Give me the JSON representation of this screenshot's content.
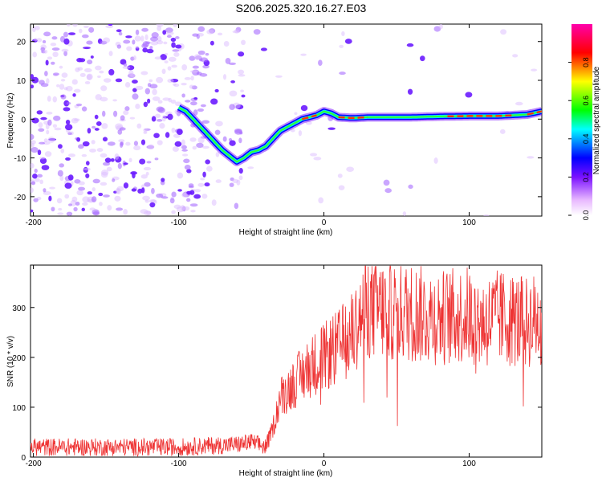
{
  "title": "S206.2025.320.16.27.E03",
  "chart_data": [
    {
      "type": "heatmap",
      "title": "S206.2025.320.16.27.E03",
      "xlabel": "Height of straight line (km)",
      "ylabel": "Frequency (Hz)",
      "xlim": [
        -202,
        150
      ],
      "ylim": [
        -25,
        24.5
      ],
      "xticks": [
        -200,
        -100,
        0,
        100
      ],
      "yticks": [
        -20,
        -10,
        0,
        10,
        20
      ],
      "colorbar": {
        "label": "Normalized spectral amplitude",
        "range": [
          0,
          1
        ],
        "ticks": [
          0.0,
          0.2,
          0.4,
          0.6,
          0.8
        ]
      },
      "ridge": {
        "x": [
          -100,
          -95,
          -90,
          -85,
          -80,
          -75,
          -70,
          -65,
          -60,
          -55,
          -50,
          -45,
          -40,
          -35,
          -30,
          -25,
          -20,
          -15,
          -10,
          -5,
          0,
          5,
          10,
          20,
          30,
          40,
          60,
          80,
          100,
          120,
          140,
          150
        ],
        "y": [
          3,
          2,
          0,
          -2,
          -4,
          -6,
          -8,
          -9.5,
          -11,
          -10,
          -8.5,
          -8,
          -7,
          -5,
          -3,
          -2,
          -1,
          0,
          0.5,
          1,
          2,
          1.5,
          0.5,
          0.3,
          0.5,
          0.5,
          0.5,
          0.7,
          0.8,
          0.8,
          1.2,
          2
        ]
      }
    },
    {
      "type": "line",
      "xlabel": "Height of straight line (km)",
      "ylabel": "SNR (10 * v/v)",
      "xlim": [
        -202,
        150
      ],
      "ylim": [
        0,
        385
      ],
      "xticks": [
        -200,
        -100,
        0,
        100
      ],
      "yticks": [
        0,
        100,
        200,
        300
      ],
      "color": "#ee3333",
      "envelope": {
        "x": [
          -202,
          -100,
          -60,
          -50,
          -40,
          -35,
          -30,
          -20,
          -10,
          0,
          10,
          20,
          25,
          30,
          40,
          60,
          80,
          100,
          110,
          120,
          140,
          150
        ],
        "y": [
          20,
          20,
          25,
          30,
          20,
          60,
          120,
          150,
          180,
          200,
          220,
          250,
          280,
          300,
          295,
          290,
          280,
          285,
          270,
          280,
          270,
          280
        ]
      }
    }
  ]
}
